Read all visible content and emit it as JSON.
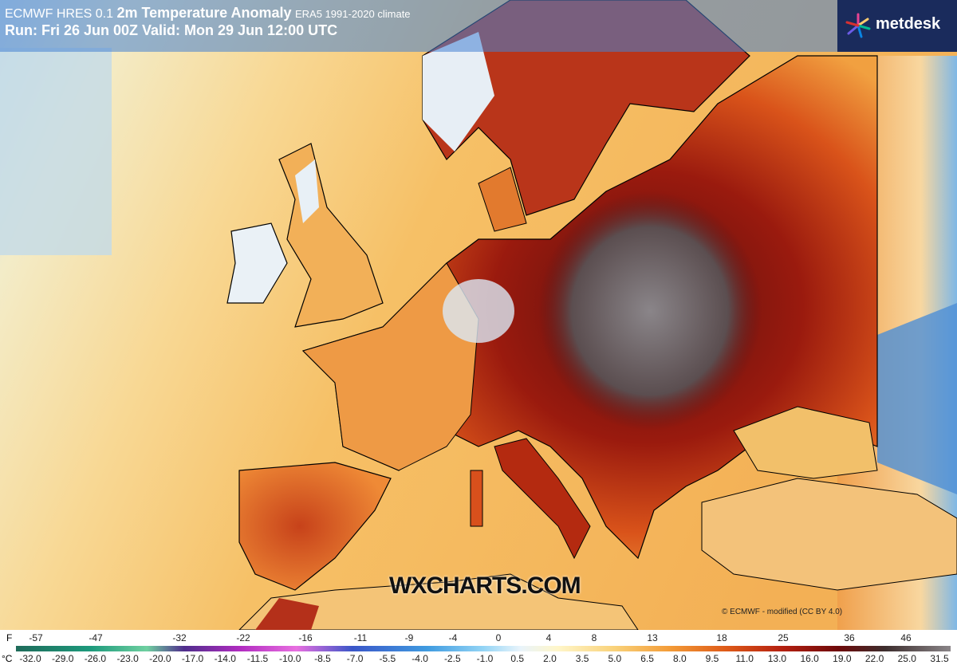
{
  "header": {
    "model": "ECMWF HRES 0.1",
    "title": "2m Temperature Anomaly",
    "climate": "ERA5 1991-2020 climate",
    "run": "Run: Fri 26 Jun 00Z Valid: Mon 29 Jun 12:00 UTC"
  },
  "logo": "metdesk",
  "watermark": "WXCHARTS.COM",
  "copyright": "© ECMWF - modified (CC BY 4.0)",
  "legend": {
    "fahrenheit_unit": "F",
    "fahrenheit_labels": [
      "-57",
      "-47",
      "-32",
      "-22",
      "-16",
      "-11",
      "-9",
      "-4",
      "0",
      "4",
      "8",
      "13",
      "18",
      "25",
      "36",
      "46"
    ],
    "celsius_unit": "°C",
    "celsius_labels": [
      "-32.0",
      "-29.0",
      "-26.0",
      "-23.0",
      "-20.0",
      "-17.0",
      "-14.0",
      "-11.5",
      "-10.0",
      "-8.5",
      "-7.0",
      "-5.5",
      "-4.0",
      "-2.5",
      "-1.0",
      "0.5",
      "2.0",
      "3.5",
      "5.0",
      "6.5",
      "8.0",
      "9.5",
      "11.0",
      "13.0",
      "16.0",
      "19.0",
      "22.0",
      "25.0",
      "31.5"
    ]
  }
}
